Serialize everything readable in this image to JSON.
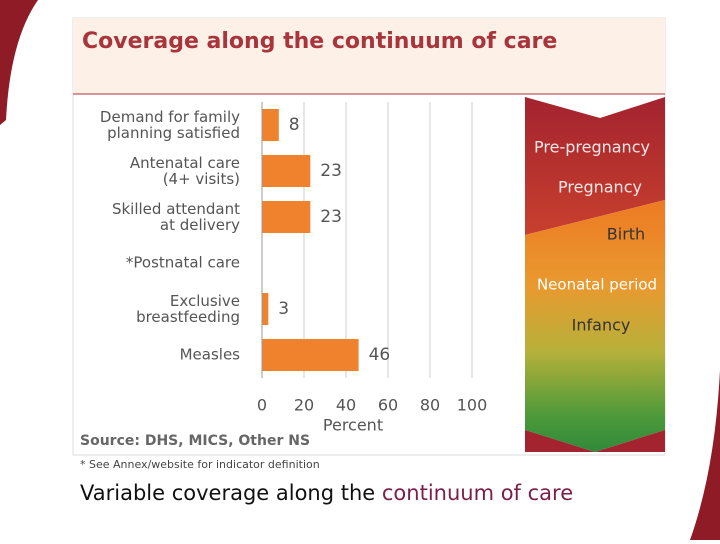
{
  "chart_data": {
    "type": "hbar",
    "title": "Coverage along the continuum of care",
    "categories": [
      "Demand for family\nplanning satisfied",
      "Antenatal care\n(4+ visits)",
      "Skilled attendant\nat delivery",
      "*Postnatal care",
      "Exclusive\nbreastfeeding",
      "Measles"
    ],
    "values": [
      8,
      23,
      23,
      null,
      3,
      46
    ],
    "color": "#f0822e",
    "xlim": [
      0,
      100
    ],
    "xticks": [
      0,
      20,
      40,
      60,
      80,
      100
    ],
    "xlabel": "Percent",
    "grid": true,
    "source": "Source: DHS, MICS, Other NS",
    "footnote": "* See Annex/website for indicator definition",
    "stages": [
      "Pre-pregnancy",
      "Pregnancy",
      "Birth",
      "Neonatal period",
      "Infancy"
    ]
  },
  "caption": {
    "text": "Variable coverage along the ",
    "highlight": "continuum of care"
  }
}
